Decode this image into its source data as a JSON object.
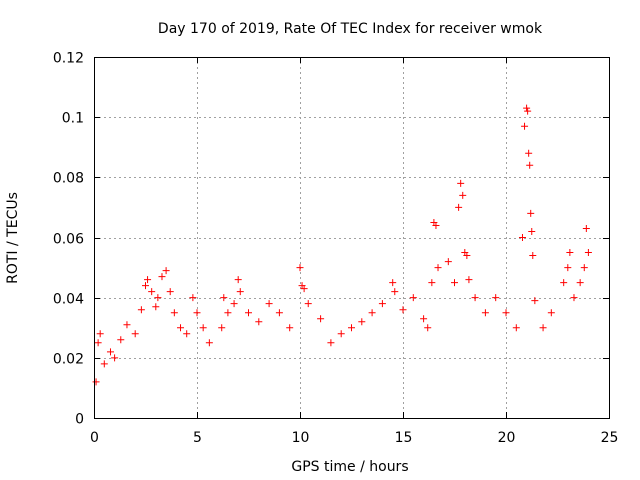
{
  "chart_data": {
    "type": "scatter",
    "title": "Day 170 of 2019, Rate Of TEC Index for receiver wmok",
    "xlabel": "GPS time / hours",
    "ylabel": "ROTI / TECUs",
    "xlim": [
      0,
      25
    ],
    "ylim": [
      0,
      0.12
    ],
    "x_ticks": [
      0,
      5,
      10,
      15,
      20,
      25
    ],
    "x_tick_labels": [
      "0",
      "5",
      "10",
      "15",
      "20",
      "25"
    ],
    "y_ticks": [
      0,
      0.02,
      0.04,
      0.06,
      0.08,
      0.1,
      0.12
    ],
    "y_tick_labels": [
      "0",
      "0.02",
      "0.04",
      "0.06",
      "0.08",
      "0.1",
      "0.12"
    ],
    "grid": true,
    "marker": "plus",
    "marker_color": "#ff0000",
    "series": [
      {
        "name": "ROTI",
        "points": [
          [
            0.1,
            0.012
          ],
          [
            0.2,
            0.025
          ],
          [
            0.3,
            0.028
          ],
          [
            0.5,
            0.018
          ],
          [
            0.8,
            0.022
          ],
          [
            1.0,
            0.02
          ],
          [
            1.3,
            0.026
          ],
          [
            1.6,
            0.031
          ],
          [
            2.0,
            0.028
          ],
          [
            2.3,
            0.036
          ],
          [
            2.5,
            0.044
          ],
          [
            2.6,
            0.046
          ],
          [
            2.8,
            0.042
          ],
          [
            3.0,
            0.037
          ],
          [
            3.1,
            0.04
          ],
          [
            3.3,
            0.047
          ],
          [
            3.5,
            0.049
          ],
          [
            3.7,
            0.042
          ],
          [
            3.9,
            0.035
          ],
          [
            4.2,
            0.03
          ],
          [
            4.5,
            0.028
          ],
          [
            4.8,
            0.04
          ],
          [
            5.0,
            0.035
          ],
          [
            5.3,
            0.03
          ],
          [
            5.6,
            0.025
          ],
          [
            6.2,
            0.03
          ],
          [
            6.3,
            0.04
          ],
          [
            6.5,
            0.035
          ],
          [
            6.8,
            0.038
          ],
          [
            7.0,
            0.046
          ],
          [
            7.1,
            0.042
          ],
          [
            7.5,
            0.035
          ],
          [
            8.0,
            0.032
          ],
          [
            8.5,
            0.038
          ],
          [
            9.0,
            0.035
          ],
          [
            9.5,
            0.03
          ],
          [
            10.0,
            0.05
          ],
          [
            10.1,
            0.044
          ],
          [
            10.2,
            0.043
          ],
          [
            10.4,
            0.038
          ],
          [
            11.0,
            0.033
          ],
          [
            11.5,
            0.025
          ],
          [
            12.0,
            0.028
          ],
          [
            12.5,
            0.03
          ],
          [
            13.0,
            0.032
          ],
          [
            13.5,
            0.035
          ],
          [
            14.0,
            0.038
          ],
          [
            14.5,
            0.045
          ],
          [
            14.6,
            0.042
          ],
          [
            15.0,
            0.036
          ],
          [
            15.5,
            0.04
          ],
          [
            16.0,
            0.033
          ],
          [
            16.2,
            0.03
          ],
          [
            16.4,
            0.045
          ],
          [
            16.5,
            0.065
          ],
          [
            16.6,
            0.064
          ],
          [
            16.7,
            0.05
          ],
          [
            17.2,
            0.052
          ],
          [
            17.5,
            0.045
          ],
          [
            17.7,
            0.07
          ],
          [
            17.8,
            0.078
          ],
          [
            17.9,
            0.074
          ],
          [
            18.0,
            0.055
          ],
          [
            18.1,
            0.054
          ],
          [
            18.2,
            0.046
          ],
          [
            18.5,
            0.04
          ],
          [
            19.0,
            0.035
          ],
          [
            19.5,
            0.04
          ],
          [
            20.0,
            0.035
          ],
          [
            20.5,
            0.03
          ],
          [
            20.8,
            0.06
          ],
          [
            20.9,
            0.097
          ],
          [
            21.0,
            0.103
          ],
          [
            21.05,
            0.102
          ],
          [
            21.1,
            0.088
          ],
          [
            21.15,
            0.084
          ],
          [
            21.2,
            0.068
          ],
          [
            21.25,
            0.062
          ],
          [
            21.3,
            0.054
          ],
          [
            21.4,
            0.039
          ],
          [
            21.8,
            0.03
          ],
          [
            22.2,
            0.035
          ],
          [
            22.8,
            0.045
          ],
          [
            23.0,
            0.05
          ],
          [
            23.1,
            0.055
          ],
          [
            23.3,
            0.04
          ],
          [
            23.6,
            0.045
          ],
          [
            23.8,
            0.05
          ],
          [
            23.9,
            0.063
          ],
          [
            24.0,
            0.055
          ]
        ]
      }
    ]
  }
}
